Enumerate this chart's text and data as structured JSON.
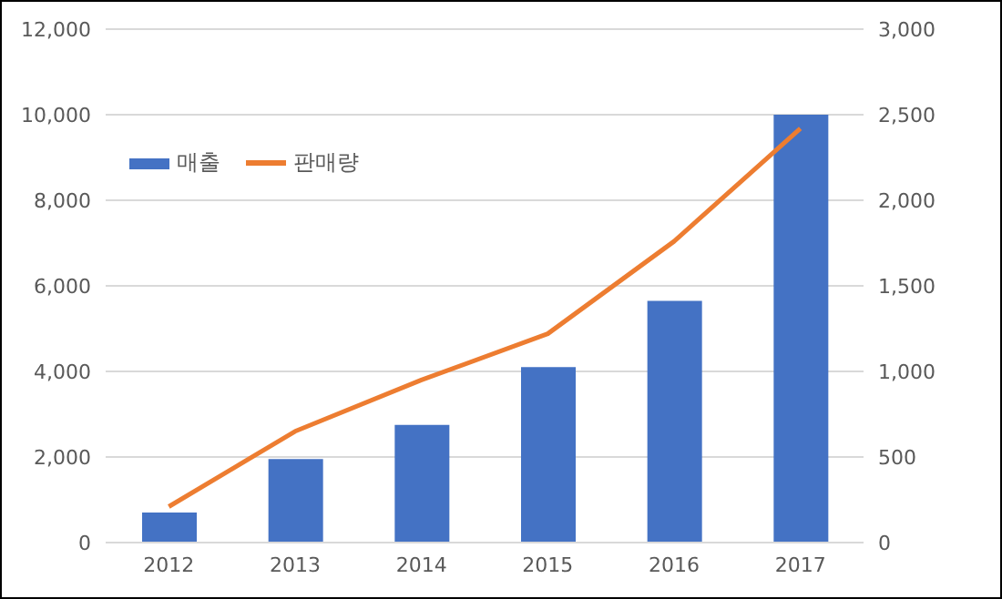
{
  "chart_data": {
    "type": "bar",
    "categories": [
      "2012",
      "2013",
      "2014",
      "2015",
      "2016",
      "2017"
    ],
    "series": [
      {
        "name": "매출",
        "color": "#4472c4",
        "values": [
          700,
          1950,
          2750,
          4100,
          5650,
          10000
        ]
      },
      {
        "name": "판매량",
        "type": "line",
        "axis": "y2",
        "color": "#ed7d31",
        "values": [
          210,
          650,
          950,
          1220,
          1760,
          2420
        ]
      }
    ],
    "ylim": [
      0,
      12000
    ],
    "yticks": [
      {
        "value": 0,
        "label": "0"
      },
      {
        "value": 2000,
        "label": "2,000"
      },
      {
        "value": 4000,
        "label": "4,000"
      },
      {
        "value": 6000,
        "label": "6,000"
      },
      {
        "value": 8000,
        "label": "8,000"
      },
      {
        "value": 10000,
        "label": "10,000"
      },
      {
        "value": 12000,
        "label": "12,000"
      }
    ],
    "y2lim": [
      0,
      3000
    ],
    "y2ticks": [
      {
        "value": 0,
        "label": "0"
      },
      {
        "value": 500,
        "label": "500"
      },
      {
        "value": 1000,
        "label": "1,000"
      },
      {
        "value": 1500,
        "label": "1,500"
      },
      {
        "value": 2000,
        "label": "2,000"
      },
      {
        "value": 2500,
        "label": "2,500"
      },
      {
        "value": 3000,
        "label": "3,000"
      }
    ],
    "grid": "y",
    "legend": "top left",
    "marker": "none"
  }
}
